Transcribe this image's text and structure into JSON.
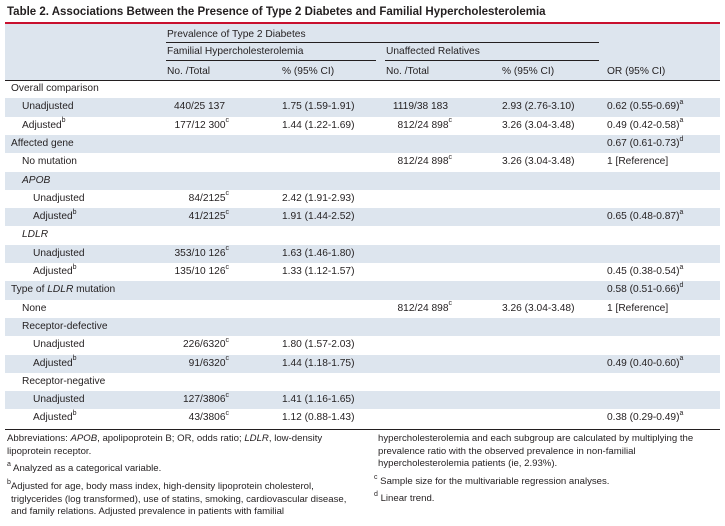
{
  "title": "Table 2. Associations Between the Presence of Type 2 Diabetes and Familial Hypercholesterolemia",
  "header": {
    "group": "Prevalence of Type 2 Diabetes",
    "fh": "Familial Hypercholesterolemia",
    "unaffected": "Unaffected Relatives",
    "col_no_total": "No. /Total",
    "col_pct": "% (95% CI)",
    "col_no_total2": "No. /Total",
    "col_pct2": "% (95% CI)",
    "col_or": "OR (95% CI)"
  },
  "rows": [
    {
      "label": "Overall comparison",
      "indent": 0,
      "italic": false,
      "fh_n": "",
      "fh_pct": "",
      "ur_n": "",
      "ur_pct": "",
      "or": "",
      "or_sup": "",
      "label_sup": "",
      "fh_sup": "",
      "ur_sup": ""
    },
    {
      "label": "Unadjusted",
      "indent": 1,
      "fh_n": "440/25 137",
      "fh_pct": "1.75 (1.59-1.91)",
      "ur_n": "1119/38 183",
      "ur_pct": "2.93 (2.76-3.10)",
      "or": "0.62 (0.55-0.69)",
      "or_sup": "a",
      "label_sup": "",
      "fh_sup": "",
      "ur_sup": ""
    },
    {
      "label": "Adjusted",
      "indent": 1,
      "fh_n": "177/12 300",
      "fh_pct": "1.44 (1.22-1.69)",
      "ur_n": "812/24 898",
      "ur_pct": "3.26 (3.04-3.48)",
      "or": "0.49 (0.42-0.58)",
      "or_sup": "a",
      "label_sup": "b",
      "fh_sup": "c",
      "ur_sup": "c"
    },
    {
      "label": "Affected gene",
      "indent": 0,
      "fh_n": "",
      "fh_pct": "",
      "ur_n": "",
      "ur_pct": "",
      "or": "0.67 (0.61-0.73)",
      "or_sup": "d",
      "label_sup": "",
      "fh_sup": "",
      "ur_sup": ""
    },
    {
      "label": "No mutation",
      "indent": 1,
      "fh_n": "",
      "fh_pct": "",
      "ur_n": "812/24 898",
      "ur_pct": "3.26 (3.04-3.48)",
      "or": "1 [Reference]",
      "or_sup": "",
      "label_sup": "",
      "fh_sup": "",
      "ur_sup": "c"
    },
    {
      "label": "APOB",
      "indent": 1,
      "italic": true,
      "fh_n": "",
      "fh_pct": "",
      "ur_n": "",
      "ur_pct": "",
      "or": "",
      "or_sup": "",
      "label_sup": "",
      "fh_sup": "",
      "ur_sup": ""
    },
    {
      "label": "Unadjusted",
      "indent": 2,
      "fh_n": "84/2125",
      "fh_pct": "2.42 (1.91-2.93)",
      "ur_n": "",
      "ur_pct": "",
      "or": "",
      "or_sup": "",
      "label_sup": "",
      "fh_sup": "c",
      "ur_sup": ""
    },
    {
      "label": "Adjusted",
      "indent": 2,
      "fh_n": "41/2125",
      "fh_pct": "1.91 (1.44-2.52)",
      "ur_n": "",
      "ur_pct": "",
      "or": "0.65 (0.48-0.87)",
      "or_sup": "a",
      "label_sup": "b",
      "fh_sup": "c",
      "ur_sup": ""
    },
    {
      "label": "LDLR",
      "indent": 1,
      "italic": true,
      "fh_n": "",
      "fh_pct": "",
      "ur_n": "",
      "ur_pct": "",
      "or": "",
      "or_sup": "",
      "label_sup": "",
      "fh_sup": "",
      "ur_sup": ""
    },
    {
      "label": "Unadjusted",
      "indent": 2,
      "fh_n": "353/10 126",
      "fh_pct": "1.63 (1.46-1.80)",
      "ur_n": "",
      "ur_pct": "",
      "or": "",
      "or_sup": "",
      "label_sup": "",
      "fh_sup": "c",
      "ur_sup": ""
    },
    {
      "label": "Adjusted",
      "indent": 2,
      "fh_n": "135/10 126",
      "fh_pct": "1.33 (1.12-1.57)",
      "ur_n": "",
      "ur_pct": "",
      "or": "0.45 (0.38-0.54)",
      "or_sup": "a",
      "label_sup": "b",
      "fh_sup": "c",
      "ur_sup": ""
    },
    {
      "label": "Type of LDLR mutation",
      "indent": 0,
      "italic_part": "LDLR",
      "fh_n": "",
      "fh_pct": "",
      "ur_n": "",
      "ur_pct": "",
      "or": "0.58 (0.51-0.66)",
      "or_sup": "d",
      "label_sup": "",
      "fh_sup": "",
      "ur_sup": ""
    },
    {
      "label": "None",
      "indent": 1,
      "fh_n": "",
      "fh_pct": "",
      "ur_n": "812/24 898",
      "ur_pct": "3.26 (3.04-3.48)",
      "or": "1 [Reference]",
      "or_sup": "",
      "label_sup": "",
      "fh_sup": "",
      "ur_sup": "c"
    },
    {
      "label": "Receptor-defective",
      "indent": 1,
      "fh_n": "",
      "fh_pct": "",
      "ur_n": "",
      "ur_pct": "",
      "or": "",
      "or_sup": "",
      "label_sup": "",
      "fh_sup": "",
      "ur_sup": ""
    },
    {
      "label": "Unadjusted",
      "indent": 2,
      "fh_n": "226/6320",
      "fh_pct": "1.80 (1.57-2.03)",
      "ur_n": "",
      "ur_pct": "",
      "or": "",
      "or_sup": "",
      "label_sup": "",
      "fh_sup": "c",
      "ur_sup": ""
    },
    {
      "label": "Adjusted",
      "indent": 2,
      "fh_n": "91/6320",
      "fh_pct": "1.44 (1.18-1.75)",
      "ur_n": "",
      "ur_pct": "",
      "or": "0.49 (0.40-0.60)",
      "or_sup": "a",
      "label_sup": "b",
      "fh_sup": "c",
      "ur_sup": ""
    },
    {
      "label": "Receptor-negative",
      "indent": 1,
      "fh_n": "",
      "fh_pct": "",
      "ur_n": "",
      "ur_pct": "",
      "or": "",
      "or_sup": "",
      "label_sup": "",
      "fh_sup": "",
      "ur_sup": ""
    },
    {
      "label": "Unadjusted",
      "indent": 2,
      "fh_n": "127/3806",
      "fh_pct": "1.41 (1.16-1.65)",
      "ur_n": "",
      "ur_pct": "",
      "or": "",
      "or_sup": "",
      "label_sup": "",
      "fh_sup": "c",
      "ur_sup": ""
    },
    {
      "label": "Adjusted",
      "indent": 2,
      "fh_n": "43/3806",
      "fh_pct": "1.12 (0.88-1.43)",
      "ur_n": "",
      "ur_pct": "",
      "or": "0.38 (0.29-0.49)",
      "or_sup": "a",
      "label_sup": "b",
      "fh_sup": "c",
      "ur_sup": ""
    }
  ],
  "footnotes": {
    "abbrev_label": "Abbreviations:",
    "abbrev_apob": "APOB",
    "abbrev_t1": ", apolipoprotein B; OR, odds ratio; ",
    "abbrev_ldlr": "LDLR",
    "abbrev_t2": ", low-density",
    "abbrev_line2": "lipoprotein receptor.",
    "a_mark": "a",
    "a_text": "Analyzed as a categorical variable.",
    "b_mark": "b",
    "b_line1": "Adjusted for age, body mass index, high-density lipoprotein cholesterol,",
    "b_line2": "triglycerides (log transformed), use of statins, smoking, cardiovascular disease,",
    "b_line3": "and family relations. Adjusted prevalence in patients with familial",
    "b_cont1": "hypercholesterolemia and each subgroup are calculated by multiplying the",
    "b_cont2": "prevalence ratio with the observed prevalence in non-familial",
    "b_cont3": "hypercholesterolemia patients (ie, 2.93%).",
    "c_mark": "c",
    "c_text": "Sample size for the multivariable regression analyses.",
    "d_mark": "d",
    "d_text": "Linear trend."
  }
}
